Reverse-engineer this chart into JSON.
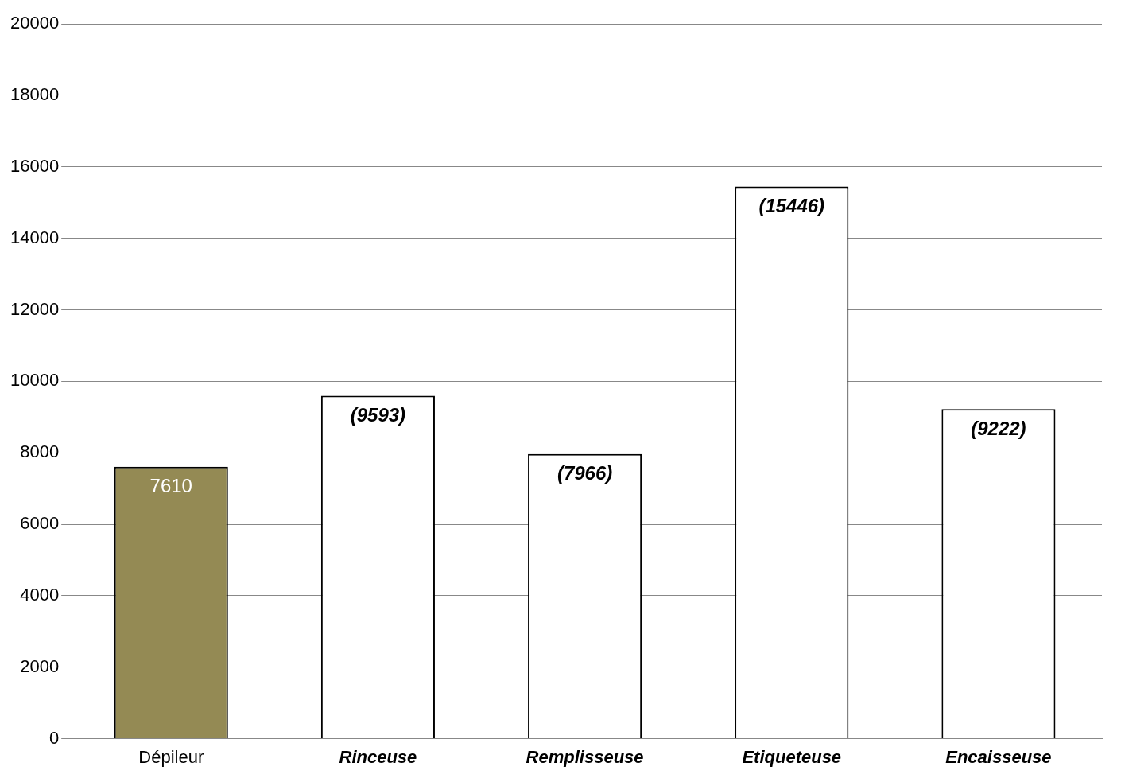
{
  "chart_data": {
    "type": "bar",
    "categories": [
      "Dépileur",
      "Rinceuse",
      "Remplisseuse",
      "Etiqueteuse",
      "Encaisseuse"
    ],
    "values": [
      7610,
      9593,
      7966,
      15446,
      9222
    ],
    "value_labels": [
      "7610",
      "(9593)",
      "(7966)",
      "(15446)",
      "(9222)"
    ],
    "colors": [
      "#948a54",
      "#ffffff",
      "#ffffff",
      "#ffffff",
      "#ffffff"
    ],
    "ylim": [
      0,
      20000
    ],
    "yticks": [
      0,
      2000,
      4000,
      6000,
      8000,
      10000,
      12000,
      14000,
      16000,
      18000,
      20000
    ],
    "grid": "y",
    "legend": false
  }
}
